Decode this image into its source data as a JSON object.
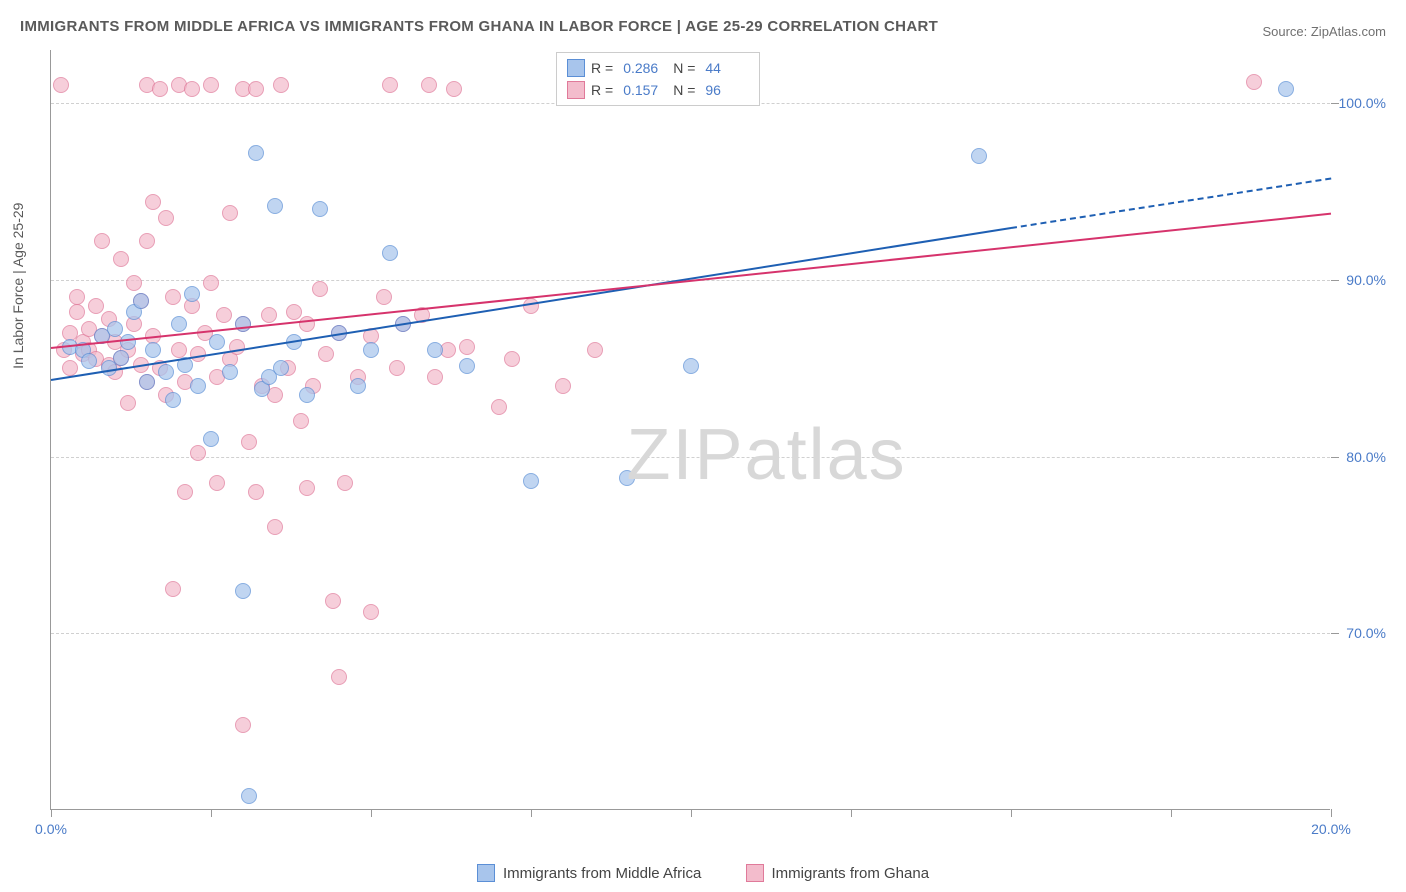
{
  "title": "IMMIGRANTS FROM MIDDLE AFRICA VS IMMIGRANTS FROM GHANA IN LABOR FORCE | AGE 25-29 CORRELATION CHART",
  "source": "Source: ZipAtlas.com",
  "watermark_a": "ZIP",
  "watermark_b": "atlas",
  "axes": {
    "y_title": "In Labor Force | Age 25-29",
    "xlim": [
      0,
      20
    ],
    "ylim": [
      60,
      103
    ],
    "xticks": [
      0,
      2.5,
      5,
      7.5,
      10,
      12.5,
      15,
      17.5,
      20
    ],
    "xlabels": {
      "0": "0.0%",
      "20": "20.0%"
    },
    "yticks": [
      70,
      80,
      90,
      100
    ],
    "ylabels": {
      "70": "70.0%",
      "80": "80.0%",
      "90": "90.0%",
      "100": "100.0%"
    }
  },
  "series": [
    {
      "name": "Immigrants from Middle Africa",
      "fill": "#a8c5ec",
      "stroke": "#5b8fd6",
      "line_color": "#1e5fb3",
      "R": "0.286",
      "N": "44",
      "trend": {
        "x1": 0,
        "y1": 84.4,
        "x2": 15,
        "y2": 93.0
      },
      "trend_dash": {
        "x1": 15,
        "y1": 93.0,
        "x2": 20,
        "y2": 95.8
      },
      "marker_radius": 8,
      "points": [
        [
          0.3,
          86.2
        ],
        [
          0.5,
          86.0
        ],
        [
          0.6,
          85.4
        ],
        [
          0.8,
          86.8
        ],
        [
          0.9,
          85.0
        ],
        [
          1.0,
          87.2
        ],
        [
          1.1,
          85.6
        ],
        [
          1.2,
          86.5
        ],
        [
          1.3,
          88.2
        ],
        [
          1.4,
          88.8
        ],
        [
          1.5,
          84.2
        ],
        [
          1.6,
          86.0
        ],
        [
          1.8,
          84.8
        ],
        [
          1.9,
          83.2
        ],
        [
          2.0,
          87.5
        ],
        [
          2.1,
          85.2
        ],
        [
          2.2,
          89.2
        ],
        [
          2.3,
          84.0
        ],
        [
          2.5,
          81.0
        ],
        [
          2.6,
          86.5
        ],
        [
          2.8,
          84.8
        ],
        [
          3.0,
          87.5
        ],
        [
          3.0,
          72.4
        ],
        [
          3.1,
          60.8
        ],
        [
          3.2,
          97.2
        ],
        [
          3.3,
          83.8
        ],
        [
          3.4,
          84.5
        ],
        [
          3.5,
          94.2
        ],
        [
          3.6,
          85.0
        ],
        [
          3.8,
          86.5
        ],
        [
          4.0,
          83.5
        ],
        [
          4.2,
          94.0
        ],
        [
          4.5,
          87.0
        ],
        [
          4.8,
          84.0
        ],
        [
          5.0,
          86.0
        ],
        [
          5.3,
          91.5
        ],
        [
          5.5,
          87.5
        ],
        [
          6.0,
          86.0
        ],
        [
          6.5,
          85.1
        ],
        [
          7.5,
          78.6
        ],
        [
          9.0,
          78.8
        ],
        [
          10.0,
          85.1
        ],
        [
          14.5,
          97.0
        ],
        [
          19.3,
          100.8
        ]
      ]
    },
    {
      "name": "Immigrants from Ghana",
      "fill": "#f3bccc",
      "stroke": "#e07a9a",
      "line_color": "#d6336c",
      "R": "0.157",
      "N": "96",
      "trend": {
        "x1": 0,
        "y1": 86.2,
        "x2": 20,
        "y2": 93.8
      },
      "marker_radius": 8,
      "points": [
        [
          0.2,
          86.0
        ],
        [
          0.3,
          87.0
        ],
        [
          0.3,
          85.0
        ],
        [
          0.4,
          88.2
        ],
        [
          0.4,
          89.0
        ],
        [
          0.5,
          86.5
        ],
        [
          0.5,
          85.8
        ],
        [
          0.6,
          87.2
        ],
        [
          0.6,
          86.0
        ],
        [
          0.7,
          88.5
        ],
        [
          0.7,
          85.5
        ],
        [
          0.8,
          86.8
        ],
        [
          0.8,
          92.2
        ],
        [
          0.9,
          85.2
        ],
        [
          0.9,
          87.8
        ],
        [
          1.0,
          86.5
        ],
        [
          1.0,
          84.8
        ],
        [
          1.1,
          85.6
        ],
        [
          1.1,
          91.2
        ],
        [
          1.2,
          86.0
        ],
        [
          1.2,
          83.0
        ],
        [
          1.3,
          87.5
        ],
        [
          1.3,
          89.8
        ],
        [
          1.4,
          85.2
        ],
        [
          1.4,
          88.8
        ],
        [
          1.5,
          92.2
        ],
        [
          1.5,
          84.2
        ],
        [
          1.5,
          101.0
        ],
        [
          1.6,
          86.8
        ],
        [
          1.6,
          94.4
        ],
        [
          1.7,
          85.0
        ],
        [
          1.7,
          100.8
        ],
        [
          1.8,
          93.5
        ],
        [
          1.8,
          83.5
        ],
        [
          1.9,
          89.0
        ],
        [
          1.9,
          72.5
        ],
        [
          2.0,
          86.0
        ],
        [
          2.0,
          101.0
        ],
        [
          2.1,
          84.2
        ],
        [
          2.1,
          78.0
        ],
        [
          2.2,
          88.5
        ],
        [
          2.2,
          100.8
        ],
        [
          2.3,
          85.8
        ],
        [
          2.3,
          80.2
        ],
        [
          2.4,
          87.0
        ],
        [
          2.5,
          89.8
        ],
        [
          2.5,
          101.0
        ],
        [
          2.6,
          84.5
        ],
        [
          2.6,
          78.5
        ],
        [
          2.7,
          88.0
        ],
        [
          2.8,
          85.5
        ],
        [
          2.8,
          93.8
        ],
        [
          2.9,
          86.2
        ],
        [
          3.0,
          64.8
        ],
        [
          3.0,
          87.5
        ],
        [
          3.0,
          100.8
        ],
        [
          3.1,
          80.8
        ],
        [
          3.2,
          78.0
        ],
        [
          3.2,
          100.8
        ],
        [
          3.3,
          84.0
        ],
        [
          3.4,
          88.0
        ],
        [
          3.5,
          83.5
        ],
        [
          3.5,
          76.0
        ],
        [
          3.6,
          101.0
        ],
        [
          3.7,
          85.0
        ],
        [
          3.8,
          88.2
        ],
        [
          3.9,
          82.0
        ],
        [
          4.0,
          78.2
        ],
        [
          4.0,
          87.5
        ],
        [
          4.1,
          84.0
        ],
        [
          4.2,
          89.5
        ],
        [
          4.3,
          85.8
        ],
        [
          4.4,
          71.8
        ],
        [
          4.5,
          87.0
        ],
        [
          4.5,
          67.5
        ],
        [
          4.6,
          78.5
        ],
        [
          4.8,
          84.5
        ],
        [
          5.0,
          86.8
        ],
        [
          5.0,
          71.2
        ],
        [
          5.2,
          89.0
        ],
        [
          5.3,
          101.0
        ],
        [
          5.4,
          85.0
        ],
        [
          5.5,
          87.5
        ],
        [
          5.8,
          88.0
        ],
        [
          5.9,
          101.0
        ],
        [
          6.0,
          84.5
        ],
        [
          6.2,
          86.0
        ],
        [
          6.3,
          100.8
        ],
        [
          6.5,
          86.2
        ],
        [
          7.0,
          82.8
        ],
        [
          7.2,
          85.5
        ],
        [
          7.5,
          88.5
        ],
        [
          8.0,
          84.0
        ],
        [
          8.5,
          86.0
        ],
        [
          18.8,
          101.2
        ],
        [
          0.15,
          101.0
        ]
      ]
    }
  ],
  "legend_top": {
    "R_label": "R =",
    "N_label": "N ="
  },
  "style": {
    "background": "#ffffff",
    "grid_color": "#d0d0d0",
    "axis_color": "#999999",
    "title_color": "#5a5a5a",
    "label_color": "#4a7bc8",
    "title_fontsize": 15,
    "label_fontsize": 14,
    "watermark_color": "#d8d8d8"
  }
}
